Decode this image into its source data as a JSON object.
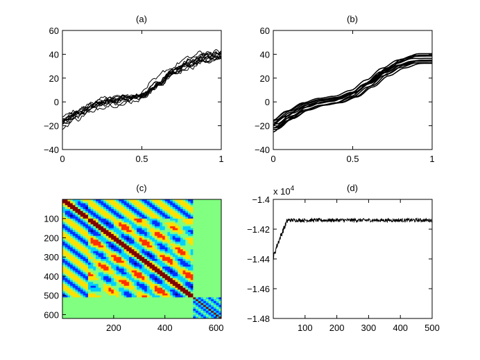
{
  "chart_data": [
    {
      "id": "a",
      "type": "line",
      "title": "(a)",
      "xlim": [
        0,
        1
      ],
      "ylim": [
        -40,
        60
      ],
      "xticks": [
        0,
        0.5,
        1
      ],
      "xtick_labels": [
        "0",
        "0.5",
        "1"
      ],
      "yticks": [
        -40,
        -20,
        0,
        20,
        40,
        60
      ],
      "ytick_labels": [
        "−40",
        "−20",
        "0",
        "20",
        "40",
        "60"
      ],
      "noise": "high",
      "series_count": 12,
      "x": [
        0,
        0.1,
        0.2,
        0.3,
        0.4,
        0.5,
        0.6,
        0.7,
        0.8,
        0.9,
        1.0
      ],
      "mean_curve": [
        -18,
        -11,
        -4,
        0,
        1,
        4,
        14,
        25,
        32,
        37,
        38
      ]
    },
    {
      "id": "b",
      "type": "line",
      "title": "(b)",
      "xlim": [
        0,
        1
      ],
      "ylim": [
        -40,
        60
      ],
      "xticks": [
        0,
        0.5,
        1
      ],
      "xtick_labels": [
        "0",
        "0.5",
        "1"
      ],
      "yticks": [
        -40,
        -20,
        0,
        20,
        40,
        60
      ],
      "ytick_labels": [
        "−40",
        "−20",
        "0",
        "20",
        "40",
        "60"
      ],
      "noise": "smooth",
      "series_count": 12,
      "x": [
        0,
        0.1,
        0.2,
        0.3,
        0.4,
        0.5,
        0.6,
        0.7,
        0.8,
        0.9,
        1.0
      ],
      "mean_curve": [
        -20,
        -11,
        -4,
        0,
        2,
        7,
        16,
        26,
        33,
        37,
        37
      ]
    },
    {
      "id": "c",
      "type": "heatmap",
      "title": "(c)",
      "matrix_size": 620,
      "xlim": [
        0,
        620
      ],
      "ylim": [
        620,
        0
      ],
      "xticks": [
        200,
        400,
        600
      ],
      "xtick_labels": [
        "200",
        "400",
        "600"
      ],
      "yticks": [
        100,
        200,
        300,
        400,
        500,
        600
      ],
      "ytick_labels": [
        "100",
        "200",
        "300",
        "400",
        "500",
        "600"
      ],
      "block_boundaries": [
        100,
        515
      ],
      "colormap": [
        "#00008f",
        "#0030ff",
        "#00d0ff",
        "#80ff80",
        "#ffe000",
        "#ff3000",
        "#800000"
      ]
    },
    {
      "id": "d",
      "type": "line",
      "title": "(d)",
      "xlim": [
        0,
        500
      ],
      "ylim": [
        -1.48,
        -1.4
      ],
      "exponent_label": "x 10",
      "exponent_power": "4",
      "xticks": [
        100,
        200,
        300,
        400,
        500
      ],
      "xtick_labels": [
        "100",
        "200",
        "300",
        "400",
        "500"
      ],
      "yticks": [
        -1.48,
        -1.46,
        -1.44,
        -1.42,
        -1.4
      ],
      "ytick_labels": [
        "−1.48",
        "−1.46",
        "−1.44",
        "−1.42",
        "−1.4"
      ],
      "trace_profile": {
        "start": -1.44,
        "ramp_end_x": 45,
        "plateau": -1.414,
        "plateau_noise": 0.0012
      }
    }
  ]
}
